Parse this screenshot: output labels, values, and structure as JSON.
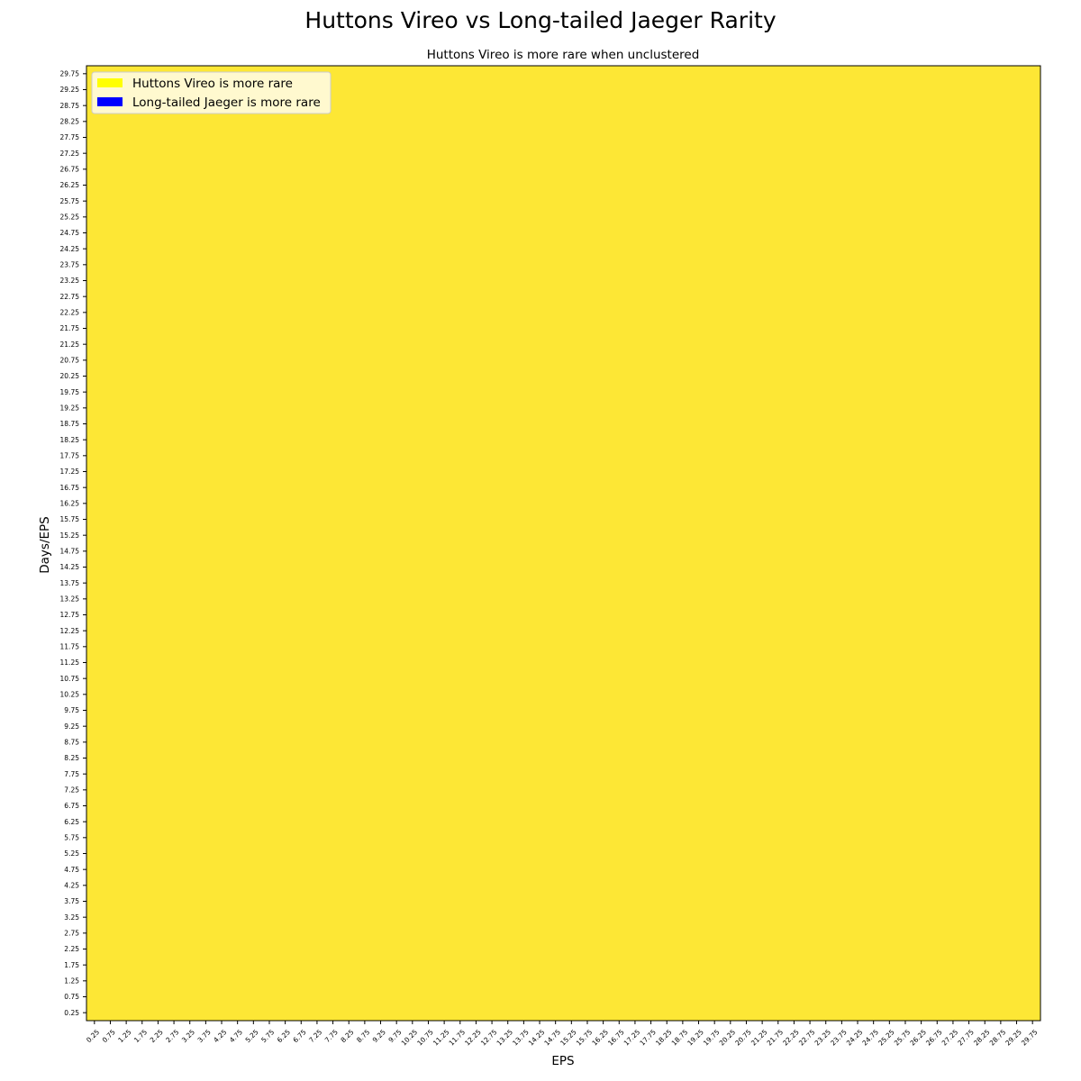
{
  "chart_data": {
    "type": "heatmap",
    "title": "Huttons Vireo vs Long-tailed Jaeger Rarity",
    "subtitle": "Huttons Vireo is more rare when unclustered",
    "xlabel": "EPS",
    "ylabel": "Days/EPS",
    "x_ticks": [
      "0.25",
      "0.75",
      "1.25",
      "1.75",
      "2.25",
      "2.75",
      "3.25",
      "3.75",
      "4.25",
      "4.75",
      "5.25",
      "5.75",
      "6.25",
      "6.75",
      "7.25",
      "7.75",
      "8.25",
      "8.75",
      "9.25",
      "9.75",
      "10.25",
      "10.75",
      "11.25",
      "11.75",
      "12.25",
      "12.75",
      "13.25",
      "13.75",
      "14.25",
      "14.75",
      "15.25",
      "15.75",
      "16.25",
      "16.75",
      "17.25",
      "17.75",
      "18.25",
      "18.75",
      "19.25",
      "19.75",
      "20.25",
      "20.75",
      "21.25",
      "21.75",
      "22.25",
      "22.75",
      "23.25",
      "23.75",
      "24.25",
      "24.75",
      "25.25",
      "25.75",
      "26.25",
      "26.75",
      "27.25",
      "27.75",
      "28.25",
      "28.75",
      "29.25",
      "29.75"
    ],
    "y_ticks": [
      "0.25",
      "0.75",
      "1.25",
      "1.75",
      "2.25",
      "2.75",
      "3.25",
      "3.75",
      "4.25",
      "4.75",
      "5.25",
      "5.75",
      "6.25",
      "6.75",
      "7.25",
      "7.75",
      "8.25",
      "8.75",
      "9.25",
      "9.75",
      "10.25",
      "10.75",
      "11.25",
      "11.75",
      "12.25",
      "12.75",
      "13.25",
      "13.75",
      "14.25",
      "14.75",
      "15.25",
      "15.75",
      "16.25",
      "16.75",
      "17.25",
      "17.75",
      "18.25",
      "18.75",
      "19.25",
      "19.75",
      "20.25",
      "20.75",
      "21.25",
      "21.75",
      "22.25",
      "22.75",
      "23.25",
      "23.75",
      "24.25",
      "24.75",
      "25.25",
      "25.75",
      "26.25",
      "26.75",
      "27.25",
      "27.75",
      "28.25",
      "28.75",
      "29.25",
      "29.75"
    ],
    "x_range": [
      0,
      30
    ],
    "y_range": [
      0,
      30
    ],
    "cell_value_all": "Huttons Vireo is more rare",
    "fill_color": "#fde735",
    "legend": {
      "placement": "top-left",
      "entries": [
        {
          "label": "Huttons Vireo is more rare",
          "color": "#ffff00"
        },
        {
          "label": "Long-tailed Jaeger is more rare",
          "color": "#0000ff"
        }
      ]
    },
    "grid": false
  }
}
